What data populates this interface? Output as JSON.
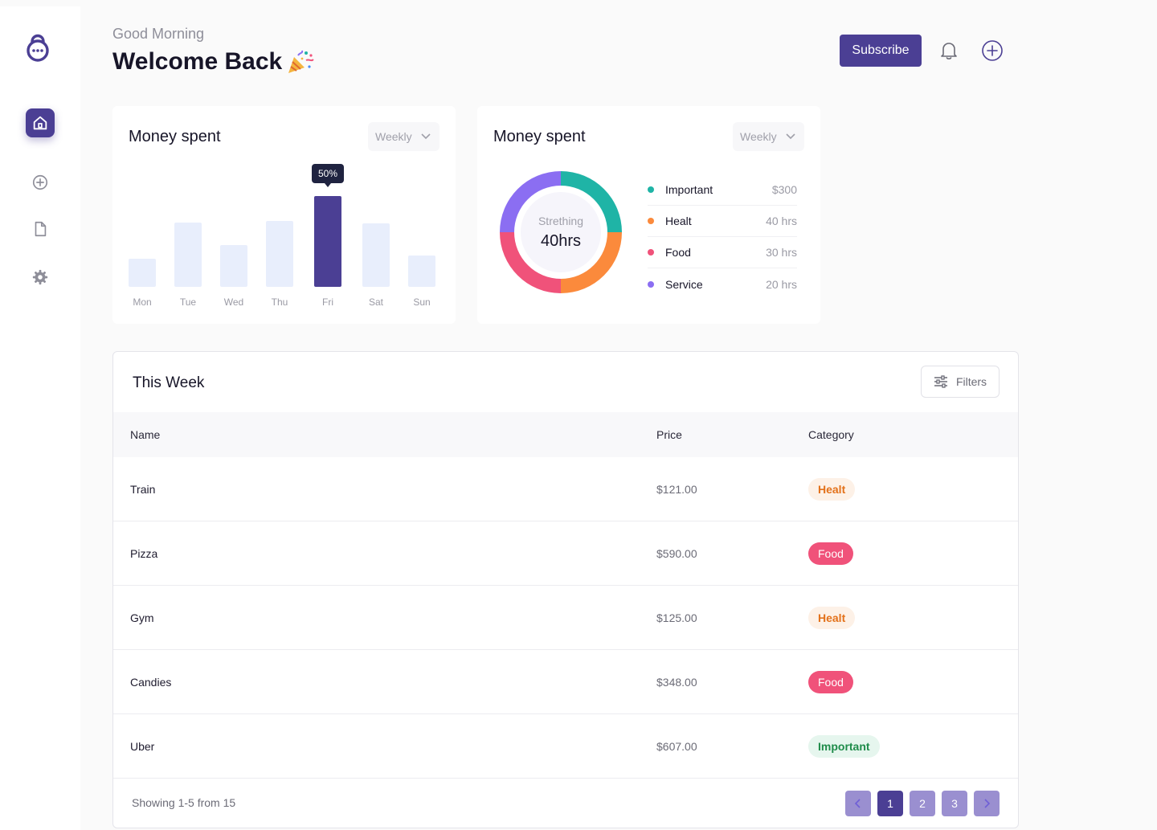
{
  "header": {
    "greeting": "Good Morning",
    "welcome": "Welcome Back",
    "subscribe_label": "Subscribe"
  },
  "sidebar": {
    "items": [
      {
        "icon": "home-icon",
        "active": true
      },
      {
        "icon": "plus-circle-icon",
        "active": false
      },
      {
        "icon": "document-icon",
        "active": false
      },
      {
        "icon": "gear-icon",
        "active": false
      }
    ]
  },
  "bar_card": {
    "title": "Money spent",
    "dropdown": "Weekly",
    "tooltip": "50%"
  },
  "donut_card": {
    "title": "Money spent",
    "dropdown": "Weekly",
    "center_label": "Strething",
    "center_value": "40hrs",
    "legend": [
      {
        "label": "Important",
        "value": "$300",
        "color": "#1fb4a6"
      },
      {
        "label": "Healt",
        "value": "40 hrs",
        "color": "#fb8a3c"
      },
      {
        "label": "Food",
        "value": "30 hrs",
        "color": "#f0527a"
      },
      {
        "label": "Service",
        "value": "20 hrs",
        "color": "#8b6ef2"
      }
    ]
  },
  "chart_data": [
    {
      "type": "bar",
      "title": "Money spent",
      "categories": [
        "Mon",
        "Tue",
        "Wed",
        "Thu",
        "Fri",
        "Sat",
        "Sun"
      ],
      "values": [
        35,
        80,
        52,
        82,
        113,
        79,
        39
      ],
      "highlight": "Fri",
      "highlight_label": "50%",
      "colors": {
        "default": "#e8eefc",
        "highlight": "#4b3f94"
      }
    },
    {
      "type": "pie",
      "title": "Money spent",
      "categories": [
        "Important",
        "Healt",
        "Food",
        "Service"
      ],
      "values": [
        25,
        25,
        25,
        25
      ],
      "colors": [
        "#1fb4a6",
        "#fb8a3c",
        "#f0527a",
        "#8b6ef2"
      ]
    }
  ],
  "table": {
    "title": "This Week",
    "filters_label": "Filters",
    "columns": {
      "name": "Name",
      "price": "Price",
      "category": "Category"
    },
    "rows": [
      {
        "name": "Train",
        "price": "$121.00",
        "category": "Healt"
      },
      {
        "name": "Pizza",
        "price": "$590.00",
        "category": "Food"
      },
      {
        "name": "Gym",
        "price": "$125.00",
        "category": "Healt"
      },
      {
        "name": "Candies",
        "price": "$348.00",
        "category": "Food"
      },
      {
        "name": "Uber",
        "price": "$607.00",
        "category": "Important"
      }
    ],
    "showing": "Showing 1-5 from 15",
    "pages": [
      "1",
      "2",
      "3"
    ]
  }
}
